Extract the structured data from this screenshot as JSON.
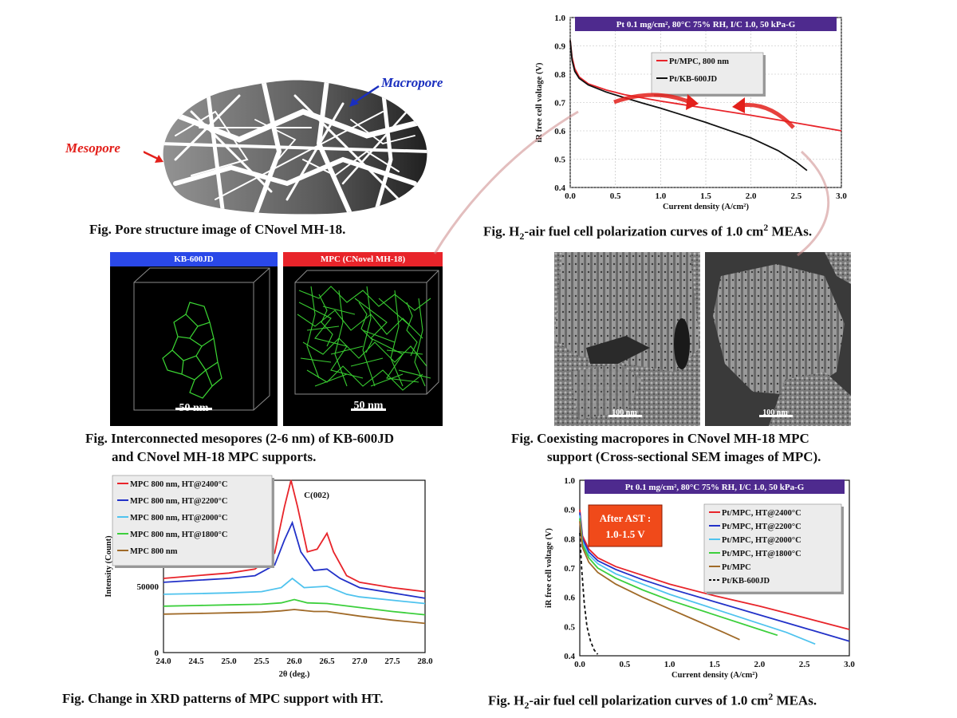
{
  "pore_image": {
    "macropore_label": "Macropore",
    "mesopore_label": "Mesopore",
    "caption": "Fig. Pore structure image of CNovel MH-18."
  },
  "micro3d": {
    "left_title": "KB-600JD",
    "right_title": "MPC (CNovel MH-18)",
    "left_scale": "50 nm",
    "right_scale": "50 nm",
    "caption_line1": "Fig. Interconnected mesopores (2-6 nm) of KB-600JD",
    "caption_line2": "and CNovel MH-18 MPC supports."
  },
  "sem": {
    "left_scale": "100 nm",
    "right_scale": "100 nm",
    "caption_line1": "Fig. Coexisting macropores in CNovel MH-18 MPC",
    "caption_line2": "support (Cross-sectional SEM images of MPC)."
  },
  "captions": {
    "polar1_prefix": "Fig. H",
    "polar1_sub": "2",
    "polar1_suffix": "-air fuel cell polarization curves of 1.0 cm",
    "polar1_sup": "2",
    "polar1_end": " MEAs.",
    "xrd": "Fig. Change in XRD patterns of MPC support with HT.",
    "polar2_prefix": "Fig. H",
    "polar2_sub": "2",
    "polar2_suffix": "-air fuel cell polarization curves of 1.0 cm",
    "polar2_sup": "2",
    "polar2_end": " MEAs."
  },
  "chart_data": [
    {
      "type": "line",
      "id": "polar1",
      "banner": "Pt 0.1 mg/cm², 80°C 75% RH, I/C 1.0, 50 kPa-G",
      "xlabel": "Current density (A/cm²)",
      "ylabel": "iR free cell voltage (V)",
      "xlim": [
        0.0,
        3.0
      ],
      "ylim": [
        0.4,
        1.0
      ],
      "xticks": [
        "0.0",
        "0.5",
        "1.0",
        "1.5",
        "2.0",
        "2.5",
        "3.0"
      ],
      "yticks": [
        "0.4",
        "0.5",
        "0.6",
        "0.7",
        "0.8",
        "0.9",
        "1.0"
      ],
      "grid": true,
      "legend": "top-right",
      "series": [
        {
          "name": "Pt/MPC, 800 nm",
          "color": "#e8242a",
          "x": [
            0.0,
            0.02,
            0.05,
            0.1,
            0.2,
            0.4,
            0.6,
            0.8,
            1.0,
            1.2,
            1.5,
            2.0,
            2.5,
            3.0
          ],
          "y": [
            0.92,
            0.86,
            0.82,
            0.79,
            0.766,
            0.744,
            0.728,
            0.716,
            0.705,
            0.695,
            0.68,
            0.655,
            0.628,
            0.6
          ]
        },
        {
          "name": "Pt/KB-600JD",
          "color": "#111111",
          "x": [
            0.0,
            0.02,
            0.05,
            0.1,
            0.2,
            0.4,
            0.6,
            0.8,
            1.0,
            1.2,
            1.5,
            2.0,
            2.3,
            2.5,
            2.62
          ],
          "y": [
            0.92,
            0.85,
            0.81,
            0.785,
            0.762,
            0.737,
            0.717,
            0.698,
            0.68,
            0.66,
            0.63,
            0.575,
            0.53,
            0.49,
            0.46
          ]
        }
      ]
    },
    {
      "type": "line",
      "id": "xrd",
      "xlabel": "2θ (deg.)",
      "ylabel": "Intensity (Count)",
      "xlim": [
        24.0,
        28.0
      ],
      "ylim": [
        0,
        130000
      ],
      "xticks": [
        "24.0",
        "24.5",
        "25.0",
        "25.5",
        "26.0",
        "26.5",
        "27.0",
        "27.5",
        "28.0"
      ],
      "yticks": [
        "0",
        "50000",
        "100000"
      ],
      "annotation": "C(002)",
      "legend": "top-left",
      "series": [
        {
          "name": "MPC 800 nm, HT@2400°C",
          "color": "#e8242a",
          "x": [
            24.0,
            24.5,
            25.0,
            25.4,
            25.7,
            25.85,
            25.95,
            26.05,
            26.2,
            26.35,
            26.5,
            26.6,
            26.8,
            27.0,
            27.5,
            28.0
          ],
          "y": [
            56000,
            58000,
            60000,
            63000,
            75000,
            110000,
            135000,
            110000,
            76000,
            78000,
            90000,
            76000,
            58000,
            53000,
            49000,
            46000
          ]
        },
        {
          "name": "MPC 800 nm, HT@2200°C",
          "color": "#2231c8",
          "x": [
            24.0,
            24.5,
            25.0,
            25.4,
            25.7,
            25.85,
            25.97,
            26.1,
            26.3,
            26.5,
            26.7,
            27.0,
            27.5,
            28.0
          ],
          "y": [
            53000,
            54500,
            56000,
            58000,
            66000,
            85000,
            98000,
            76000,
            62000,
            63000,
            56000,
            49000,
            45000,
            41000
          ]
        },
        {
          "name": "MPC 800 nm, HT@2000°C",
          "color": "#4fc3ee",
          "x": [
            24.0,
            24.5,
            25.0,
            25.5,
            25.8,
            25.97,
            26.15,
            26.5,
            26.8,
            27.0,
            27.5,
            28.0
          ],
          "y": [
            44000,
            44500,
            45000,
            46000,
            49000,
            56000,
            49000,
            50000,
            44000,
            42000,
            39500,
            37000
          ]
        },
        {
          "name": "MPC 800 nm, HT@1800°C",
          "color": "#3ccf3c",
          "x": [
            24.0,
            24.5,
            25.0,
            25.5,
            25.8,
            26.0,
            26.2,
            26.5,
            27.0,
            27.5,
            28.0
          ],
          "y": [
            35000,
            35500,
            36000,
            36500,
            37500,
            40000,
            37500,
            37000,
            34000,
            31000,
            28500
          ]
        },
        {
          "name": "MPC 800 nm",
          "color": "#a06a28",
          "x": [
            24.0,
            24.5,
            25.0,
            25.5,
            25.8,
            26.0,
            26.3,
            26.5,
            27.0,
            27.5,
            28.0
          ],
          "y": [
            29000,
            29500,
            30000,
            30500,
            31500,
            32500,
            31000,
            31000,
            27500,
            24500,
            22000
          ]
        }
      ]
    },
    {
      "type": "line",
      "id": "polar2",
      "banner": "Pt 0.1 mg/cm², 80°C 75% RH, I/C 1.0, 50 kPa-G",
      "annotation_line1": "After AST :",
      "annotation_line2": "1.0-1.5 V",
      "xlabel": "Current density (A/cm²)",
      "ylabel": "iR free cell voltage (V)",
      "xlim": [
        0.0,
        3.0
      ],
      "ylim": [
        0.4,
        1.0
      ],
      "xticks": [
        "0.0",
        "0.5",
        "1.0",
        "1.5",
        "2.0",
        "2.5",
        "3.0"
      ],
      "yticks": [
        "0.4",
        "0.5",
        "0.6",
        "0.7",
        "0.8",
        "0.9",
        "1.0"
      ],
      "legend": "top-right",
      "series": [
        {
          "name": "Pt/MPC, HT@2400°C",
          "color": "#e8242a",
          "dash": false,
          "x": [
            0.0,
            0.03,
            0.1,
            0.2,
            0.4,
            0.7,
            1.0,
            1.5,
            2.0,
            2.5,
            3.0
          ],
          "y": [
            0.9,
            0.81,
            0.765,
            0.735,
            0.705,
            0.675,
            0.645,
            0.605,
            0.57,
            0.53,
            0.49
          ]
        },
        {
          "name": "Pt/MPC, HT@2200°C",
          "color": "#2231c8",
          "dash": false,
          "x": [
            0.0,
            0.03,
            0.1,
            0.2,
            0.4,
            0.7,
            1.0,
            1.5,
            2.0,
            2.5,
            3.0
          ],
          "y": [
            0.89,
            0.8,
            0.755,
            0.725,
            0.695,
            0.66,
            0.63,
            0.585,
            0.54,
            0.495,
            0.45
          ]
        },
        {
          "name": "Pt/MPC, HT@2000°C",
          "color": "#4fc3ee",
          "dash": false,
          "x": [
            0.0,
            0.03,
            0.1,
            0.2,
            0.4,
            0.7,
            1.0,
            1.5,
            2.0,
            2.3,
            2.62
          ],
          "y": [
            0.88,
            0.79,
            0.745,
            0.715,
            0.68,
            0.645,
            0.61,
            0.56,
            0.51,
            0.48,
            0.44
          ]
        },
        {
          "name": "Pt/MPC, HT@1800°C",
          "color": "#3ccf3c",
          "dash": false,
          "x": [
            0.0,
            0.03,
            0.1,
            0.2,
            0.4,
            0.7,
            1.0,
            1.5,
            2.0,
            2.2
          ],
          "y": [
            0.87,
            0.78,
            0.735,
            0.7,
            0.665,
            0.625,
            0.59,
            0.54,
            0.49,
            0.47
          ]
        },
        {
          "name": "Pt/MPC",
          "color": "#a06a28",
          "dash": false,
          "x": [
            0.0,
            0.03,
            0.1,
            0.2,
            0.4,
            0.7,
            1.0,
            1.3,
            1.6,
            1.78
          ],
          "y": [
            0.86,
            0.77,
            0.72,
            0.685,
            0.645,
            0.6,
            0.56,
            0.52,
            0.48,
            0.455
          ]
        },
        {
          "name": "Pt/KB-600JD",
          "color": "#111111",
          "dash": true,
          "x": [
            0.0,
            0.02,
            0.05,
            0.08,
            0.12,
            0.16,
            0.2
          ],
          "y": [
            0.82,
            0.7,
            0.58,
            0.5,
            0.45,
            0.42,
            0.405
          ]
        }
      ]
    }
  ]
}
